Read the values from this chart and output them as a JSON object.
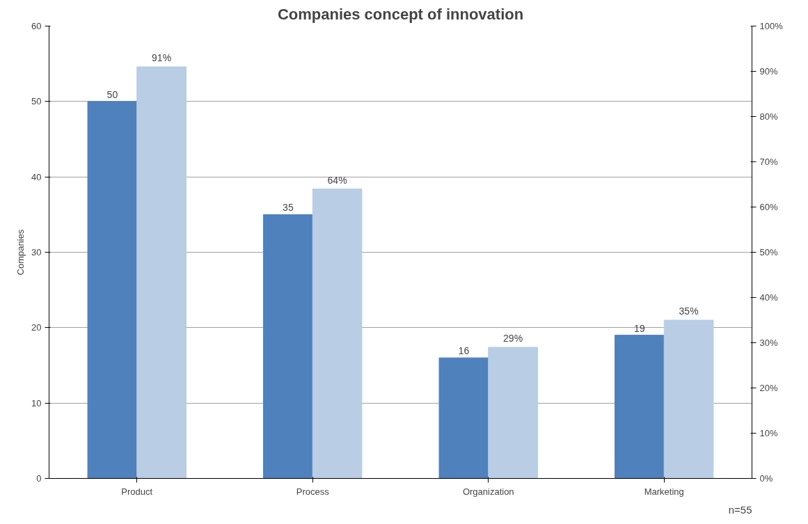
{
  "chart_data": {
    "type": "bar",
    "title": "Companies concept of innovation",
    "ylabel": "Companies",
    "categories": [
      "Product",
      "Process",
      "Organization",
      "Marketing"
    ],
    "series": [
      {
        "color": "#4f81bd",
        "values": [
          50,
          35,
          16,
          19
        ]
      },
      {
        "color": "#b9cde5",
        "values": [
          91,
          64,
          29,
          35
        ],
        "axis": "y2",
        "value_labels": [
          "91%",
          "64%",
          "29%",
          "35%"
        ]
      }
    ],
    "data_labels": true,
    "ylim": [
      0,
      60
    ],
    "yticks": [
      0,
      10,
      20,
      30,
      40,
      50,
      60
    ],
    "y2lim": [
      0,
      100
    ],
    "y2ticks": [
      {
        "value": 0,
        "label": "0%"
      },
      {
        "value": 10,
        "label": "10%"
      },
      {
        "value": 20,
        "label": "20%"
      },
      {
        "value": 30,
        "label": "30%"
      },
      {
        "value": 40,
        "label": "40%"
      },
      {
        "value": 50,
        "label": "50%"
      },
      {
        "value": 60,
        "label": "60%"
      },
      {
        "value": 70,
        "label": "70%"
      },
      {
        "value": 80,
        "label": "80%"
      },
      {
        "value": 90,
        "label": "90%"
      },
      {
        "value": 100,
        "label": "100%"
      }
    ],
    "grid": "y",
    "annotations": [
      "n=55"
    ]
  }
}
